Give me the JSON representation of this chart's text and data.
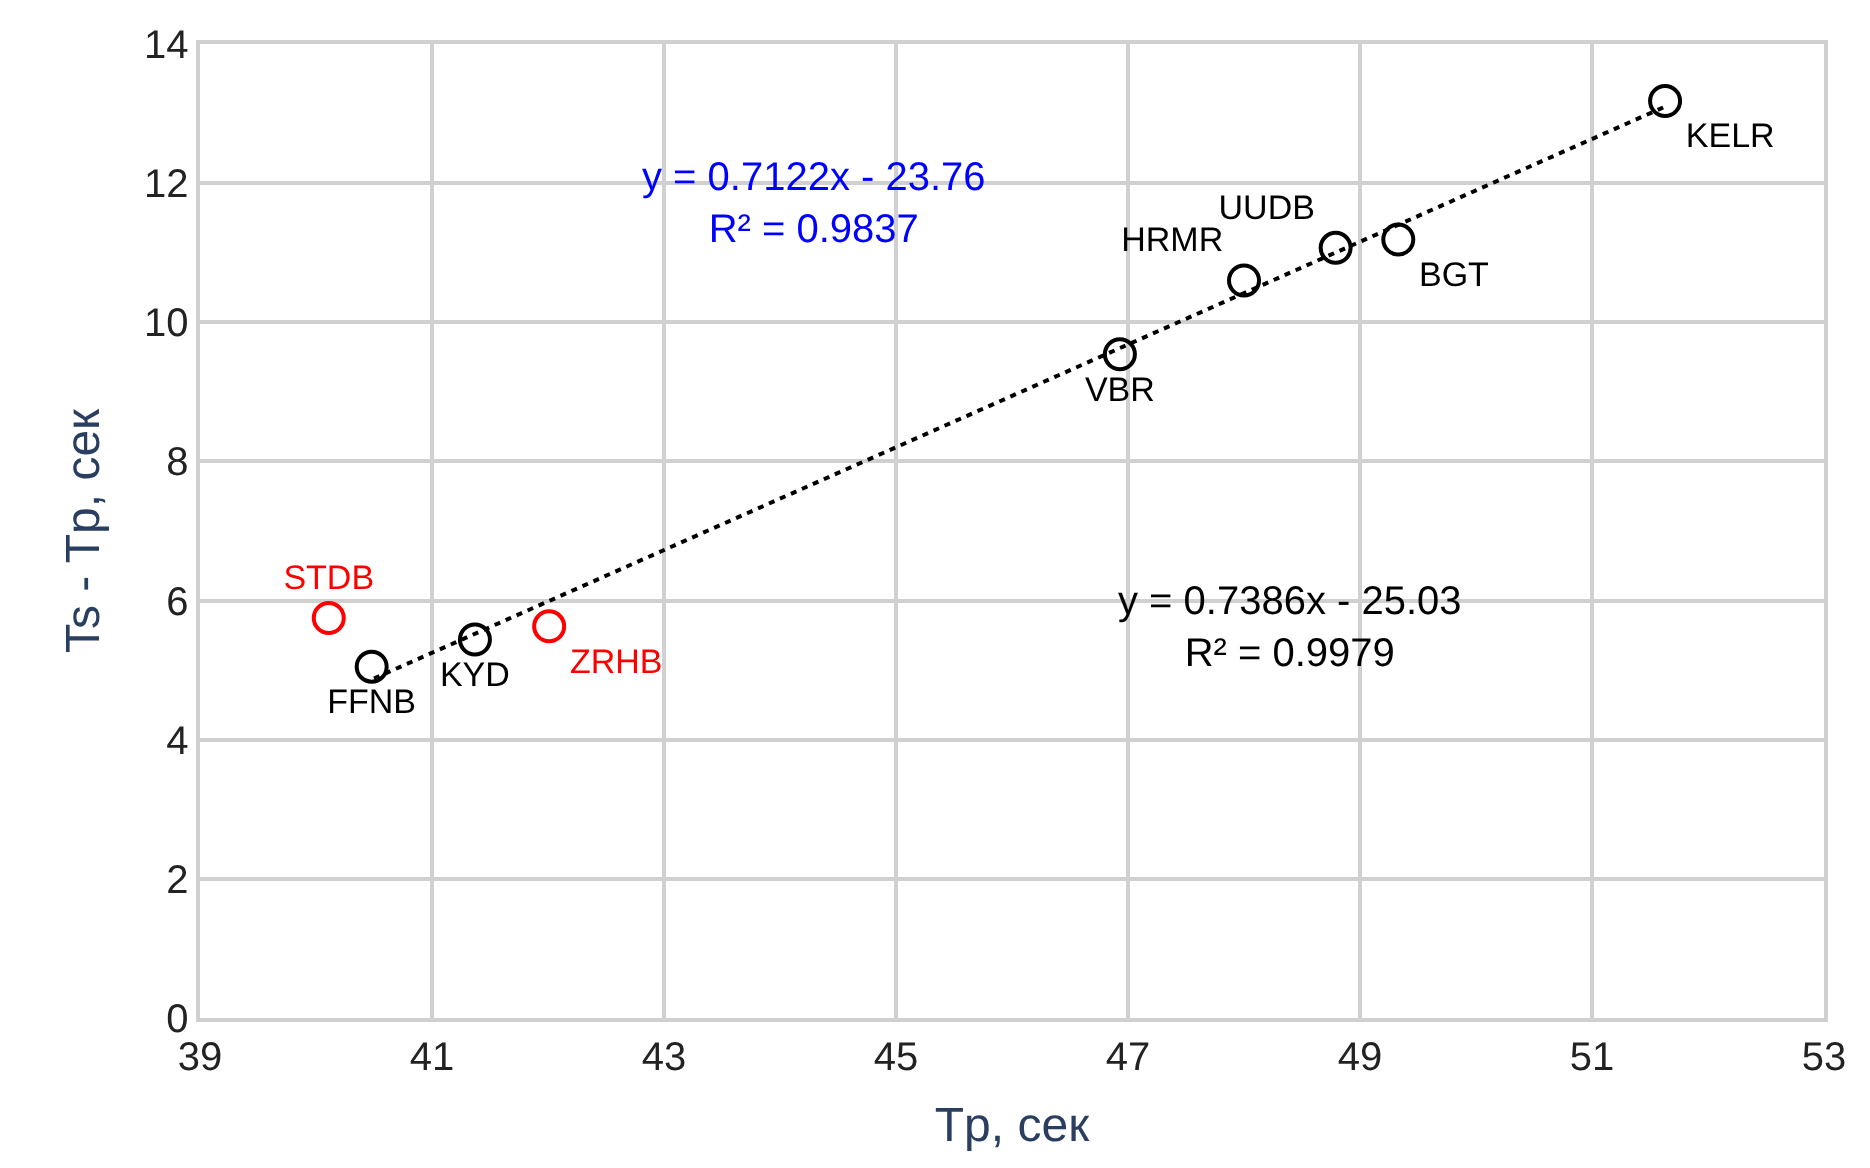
{
  "chart_data": {
    "type": "scatter",
    "xlabel": "Tp, сек",
    "ylabel": "Ts - Tp, сек",
    "xlim": [
      39,
      53
    ],
    "xticks": [
      39,
      41,
      43,
      45,
      47,
      49,
      51,
      53
    ],
    "ylim": [
      0,
      14
    ],
    "yticks": [
      0,
      2,
      4,
      6,
      8,
      10,
      12,
      14
    ],
    "grid": true,
    "marker": "circle",
    "series": [
      {
        "name": "STDB",
        "color": "#ff0000",
        "x": [
          40.11
        ],
        "values": [
          5.75
        ]
      },
      {
        "name": "FFNB",
        "color": "#000000",
        "x": [
          40.48
        ],
        "values": [
          5.05
        ]
      },
      {
        "name": "KYD",
        "color": "#000000",
        "x": [
          41.37
        ],
        "values": [
          5.44
        ]
      },
      {
        "name": "ZRHB",
        "color": "#ff0000",
        "x": [
          42.01
        ],
        "values": [
          5.63
        ]
      },
      {
        "name": "VBR",
        "color": "#000000",
        "x": [
          46.93
        ],
        "values": [
          9.54
        ]
      },
      {
        "name": "HRMR",
        "color": "#000000",
        "x": [
          48.0
        ],
        "values": [
          10.6
        ]
      },
      {
        "name": "UUDB",
        "color": "#000000",
        "x": [
          48.79
        ],
        "values": [
          11.07
        ]
      },
      {
        "name": "BGT",
        "color": "#000000",
        "x": [
          49.33
        ],
        "values": [
          11.19
        ]
      },
      {
        "name": "KELR",
        "color": "#000000",
        "x": [
          51.63
        ],
        "values": [
          13.18
        ]
      },
      {
        "type": "line",
        "marker": "none",
        "line_style": "dotted",
        "color": "#000000",
        "x": [
          40.5,
          51.63
        ],
        "values": [
          4.88,
          13.1
        ]
      }
    ],
    "annotations": [
      "y = 0.7122x - 23.76\nR² = 0.9837",
      "y = 0.7386x - 25.03\nR² = 0.9979"
    ]
  }
}
